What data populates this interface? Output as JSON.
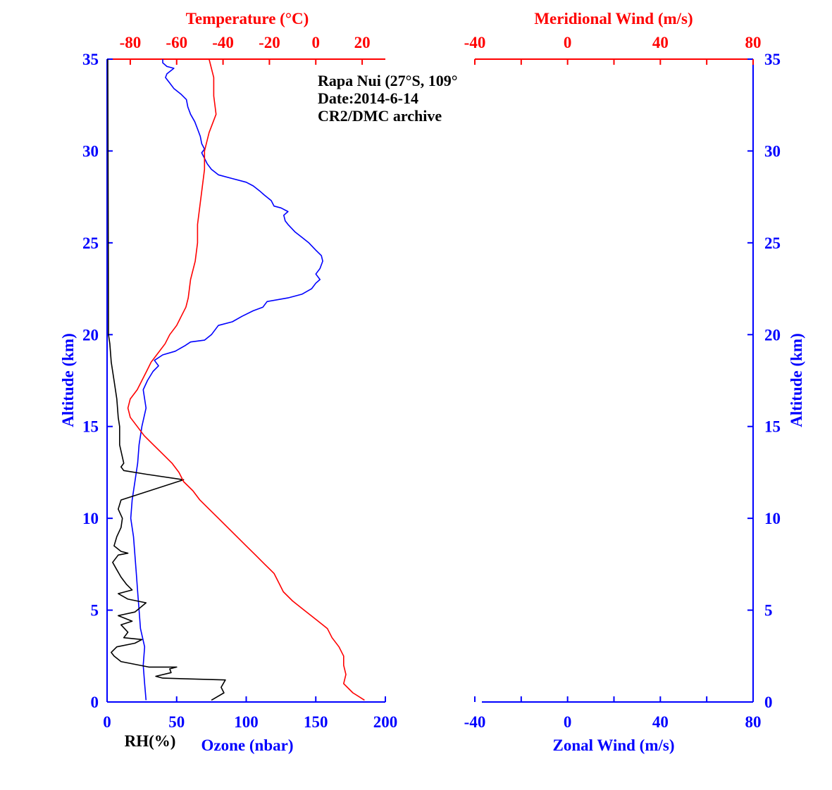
{
  "colors": {
    "blue": "#0000ff",
    "red": "#ff0000",
    "black": "#000000"
  },
  "annotation": {
    "station": "Rapa Nui (27°S, 109°",
    "date": "Date:2014-6-14",
    "archive": "CR2/DMC archive"
  },
  "chart_data": [
    {
      "type": "line",
      "panel": "left",
      "ylabel": "Altitude (km)",
      "ylabel_right": "",
      "ylim": [
        0,
        35
      ],
      "yticks": [
        "0",
        "5",
        "10",
        "15",
        "20",
        "25",
        "30",
        "35"
      ],
      "x_bottom": {
        "label": "Ozone (nbar)",
        "sublabel": "RH(%)",
        "range": [
          0,
          200
        ],
        "ticks": [
          "0",
          "50",
          "100",
          "150",
          "200"
        ]
      },
      "x_top": {
        "label": "Temperature (°C)",
        "range": [
          -90,
          30
        ],
        "ticks": [
          "-80",
          "-60",
          "-40",
          "-20",
          "0",
          "20"
        ]
      },
      "series": [
        {
          "name": "Ozone (nbar)",
          "color": "#0000ff",
          "axis": "bottom",
          "points": [
            [
              28,
              0.1
            ],
            [
              27,
              1.0
            ],
            [
              26,
              2.0
            ],
            [
              27,
              3.0
            ],
            [
              24,
              4.0
            ],
            [
              23,
              5.0
            ],
            [
              22,
              6.0
            ],
            [
              21,
              7.0
            ],
            [
              20,
              8.0
            ],
            [
              19,
              9.0
            ],
            [
              17,
              10.0
            ],
            [
              18,
              11.0
            ],
            [
              20,
              12.0
            ],
            [
              22,
              13.0
            ],
            [
              23,
              14.0
            ],
            [
              25,
              15.0
            ],
            [
              28,
              16.0
            ],
            [
              26,
              17.0
            ],
            [
              29,
              17.5
            ],
            [
              33,
              18.0
            ],
            [
              37,
              18.3
            ],
            [
              34,
              18.6
            ],
            [
              40,
              18.9
            ],
            [
              49,
              19.1
            ],
            [
              56,
              19.4
            ],
            [
              60,
              19.6
            ],
            [
              70,
              19.7
            ],
            [
              75,
              20.0
            ],
            [
              80,
              20.5
            ],
            [
              90,
              20.7
            ],
            [
              97,
              21.0
            ],
            [
              105,
              21.3
            ],
            [
              112,
              21.5
            ],
            [
              115,
              21.8
            ],
            [
              130,
              22.0
            ],
            [
              140,
              22.2
            ],
            [
              147,
              22.5
            ],
            [
              150,
              22.8
            ],
            [
              153,
              23.0
            ],
            [
              150,
              23.3
            ],
            [
              153,
              23.6
            ],
            [
              155,
              24.0
            ],
            [
              154,
              24.3
            ],
            [
              150,
              24.6
            ],
            [
              145,
              25.0
            ],
            [
              140,
              25.3
            ],
            [
              135,
              25.6
            ],
            [
              130,
              26.0
            ],
            [
              128,
              26.2
            ],
            [
              127,
              26.5
            ],
            [
              130,
              26.7
            ],
            [
              125,
              26.9
            ],
            [
              120,
              27.0
            ],
            [
              118,
              27.3
            ],
            [
              113,
              27.6
            ],
            [
              110,
              27.8
            ],
            [
              105,
              28.1
            ],
            [
              100,
              28.3
            ],
            [
              90,
              28.5
            ],
            [
              80,
              28.7
            ],
            [
              75,
              29.0
            ],
            [
              72,
              29.3
            ],
            [
              70,
              29.6
            ],
            [
              68,
              29.9
            ],
            [
              70,
              30.1
            ],
            [
              68,
              30.4
            ],
            [
              67,
              30.8
            ],
            [
              65,
              31.2
            ],
            [
              63,
              31.6
            ],
            [
              60,
              32.0
            ],
            [
              58,
              32.4
            ],
            [
              57,
              32.8
            ],
            [
              53,
              33.1
            ],
            [
              48,
              33.4
            ],
            [
              45,
              33.7
            ],
            [
              42,
              34.0
            ],
            [
              43,
              34.2
            ],
            [
              48,
              34.5
            ],
            [
              43,
              34.6
            ],
            [
              40,
              34.8
            ],
            [
              40,
              35.0
            ]
          ]
        },
        {
          "name": "RH(%)",
          "color": "#000000",
          "axis": "bottom",
          "points": [
            [
              75,
              0.1
            ],
            [
              84,
              0.5
            ],
            [
              82,
              0.8
            ],
            [
              85,
              1.2
            ],
            [
              40,
              1.3
            ],
            [
              35,
              1.4
            ],
            [
              46,
              1.6
            ],
            [
              45,
              1.8
            ],
            [
              50,
              1.9
            ],
            [
              30,
              1.9
            ],
            [
              10,
              2.2
            ],
            [
              5,
              2.5
            ],
            [
              3,
              2.7
            ],
            [
              7,
              3.0
            ],
            [
              20,
              3.2
            ],
            [
              25,
              3.4
            ],
            [
              12,
              3.5
            ],
            [
              15,
              3.8
            ],
            [
              10,
              4.2
            ],
            [
              18,
              4.4
            ],
            [
              8,
              4.7
            ],
            [
              20,
              4.9
            ],
            [
              28,
              5.4
            ],
            [
              15,
              5.6
            ],
            [
              8,
              5.9
            ],
            [
              18,
              6.1
            ],
            [
              14,
              6.4
            ],
            [
              10,
              6.8
            ],
            [
              7,
              7.2
            ],
            [
              4,
              7.6
            ],
            [
              8,
              8.0
            ],
            [
              15,
              8.1
            ],
            [
              10,
              8.2
            ],
            [
              5,
              8.5
            ],
            [
              7,
              9.0
            ],
            [
              10,
              9.5
            ],
            [
              11,
              10.0
            ],
            [
              8,
              10.5
            ],
            [
              10,
              11.0
            ],
            [
              55,
              12.1
            ],
            [
              28,
              12.4
            ],
            [
              12,
              12.6
            ],
            [
              10,
              12.8
            ],
            [
              12,
              13.0
            ],
            [
              9,
              14.0
            ],
            [
              9,
              15.0
            ],
            [
              8,
              15.5
            ],
            [
              7,
              16.5
            ],
            [
              5,
              17.5
            ],
            [
              3,
              18.5
            ],
            [
              2,
              19.5
            ],
            [
              1,
              20.0
            ],
            [
              1,
              20.5
            ],
            [
              0.5,
              35.0
            ]
          ]
        },
        {
          "name": "Temperature (°C)",
          "color": "#ff0000",
          "axis": "top",
          "points": [
            [
              21,
              0.1
            ],
            [
              16,
              0.5
            ],
            [
              12,
              1.0
            ],
            [
              13,
              1.5
            ],
            [
              12,
              2.0
            ],
            [
              12,
              2.5
            ],
            [
              10,
              3.0
            ],
            [
              7,
              3.5
            ],
            [
              5,
              4.0
            ],
            [
              0,
              4.5
            ],
            [
              -5,
              5.0
            ],
            [
              -10,
              5.5
            ],
            [
              -14,
              6.0
            ],
            [
              -16,
              6.5
            ],
            [
              -18,
              7.0
            ],
            [
              -22,
              7.5
            ],
            [
              -26,
              8.0
            ],
            [
              -30,
              8.5
            ],
            [
              -34,
              9.0
            ],
            [
              -38,
              9.5
            ],
            [
              -42,
              10.0
            ],
            [
              -46,
              10.5
            ],
            [
              -50,
              11.0
            ],
            [
              -53,
              11.5
            ],
            [
              -57,
              12.0
            ],
            [
              -59,
              12.5
            ],
            [
              -62,
              13.0
            ],
            [
              -66,
              13.5
            ],
            [
              -70,
              14.0
            ],
            [
              -74,
              14.5
            ],
            [
              -77,
              15.0
            ],
            [
              -80,
              15.5
            ],
            [
              -81,
              16.0
            ],
            [
              -80,
              16.5
            ],
            [
              -77,
              17.0
            ],
            [
              -75,
              17.5
            ],
            [
              -73,
              18.0
            ],
            [
              -71,
              18.5
            ],
            [
              -68,
              19.0
            ],
            [
              -65,
              19.5
            ],
            [
              -63,
              20.0
            ],
            [
              -60,
              20.5
            ],
            [
              -58,
              21.0
            ],
            [
              -56,
              21.5
            ],
            [
              -55,
              22.0
            ],
            [
              -54,
              23.0
            ],
            [
              -52,
              24.0
            ],
            [
              -51,
              25.0
            ],
            [
              -51,
              26.0
            ],
            [
              -50,
              27.0
            ],
            [
              -49,
              28.0
            ],
            [
              -48,
              29.0
            ],
            [
              -48,
              30.0
            ],
            [
              -46,
              31.0
            ],
            [
              -43,
              32.0
            ],
            [
              -44,
              33.0
            ],
            [
              -44,
              34.0
            ],
            [
              -46,
              35.0
            ]
          ]
        }
      ]
    },
    {
      "type": "line",
      "panel": "right",
      "ylabel": "",
      "ylabel_right": "Altitude (km)",
      "ylim": [
        0,
        35
      ],
      "yticks": [
        "0",
        "5",
        "10",
        "15",
        "20",
        "25",
        "30",
        "35"
      ],
      "x_bottom": {
        "label": "Zonal Wind (m/s)",
        "range": [
          -40,
          80
        ],
        "ticks": [
          "-40",
          "0",
          "40",
          "80"
        ]
      },
      "x_top": {
        "label": "Meridional Wind (m/s)",
        "range": [
          -40,
          80
        ],
        "ticks": [
          "-40",
          "0",
          "40",
          "80"
        ]
      },
      "series": []
    }
  ]
}
